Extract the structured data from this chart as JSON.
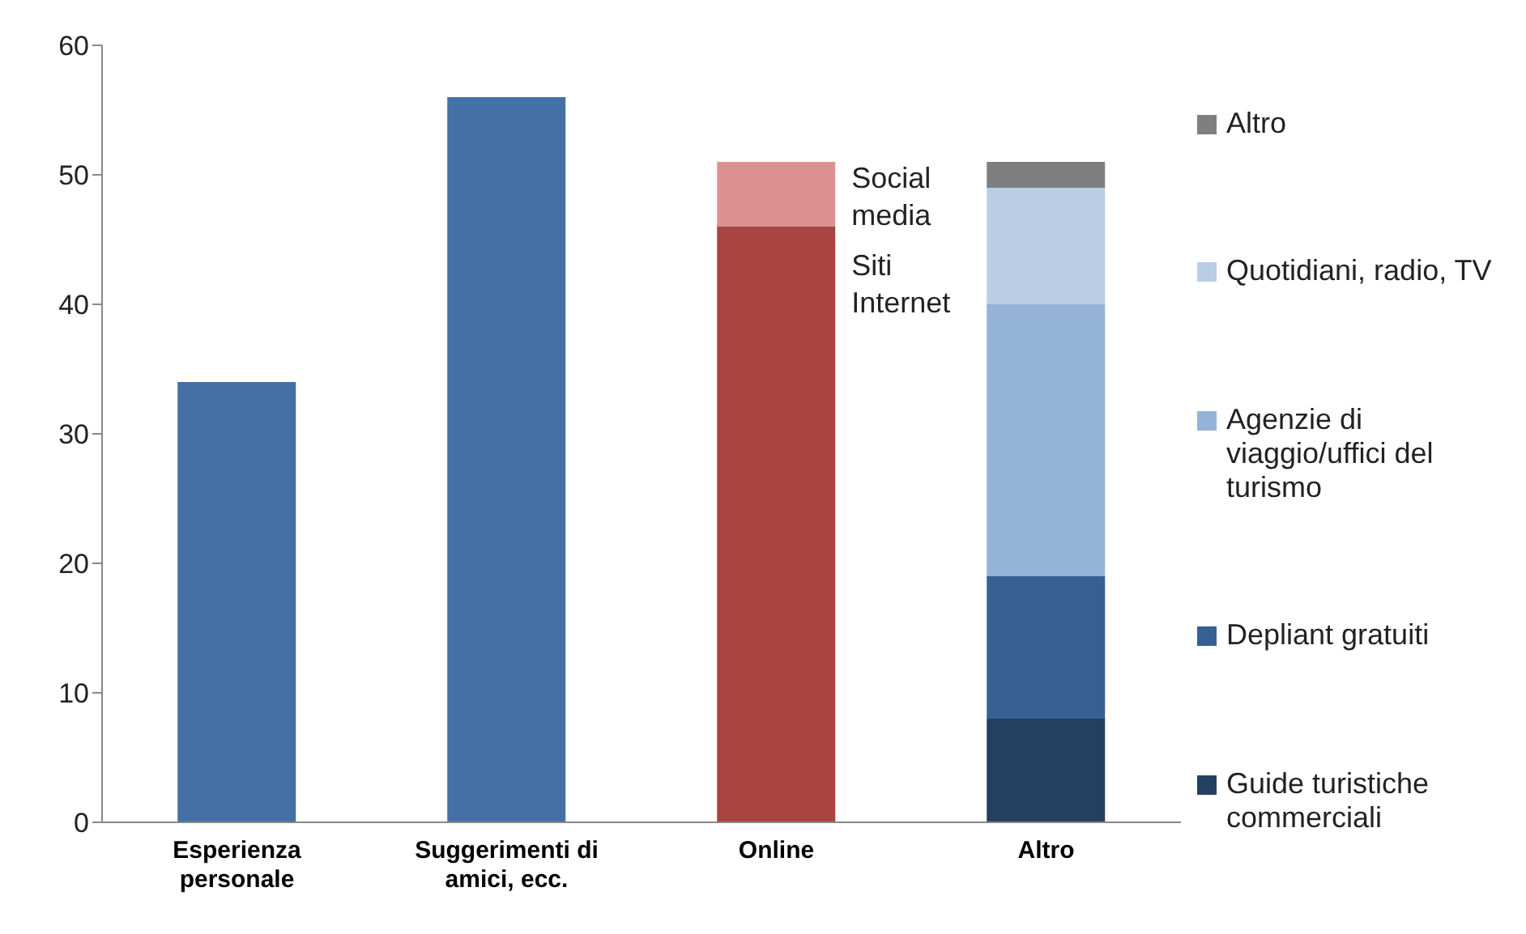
{
  "chart_data": {
    "type": "bar",
    "stacked": true,
    "categories": [
      "Esperienza personale",
      "Suggerimenti di amici, ecc.",
      "Online",
      "Altro"
    ],
    "series": [
      {
        "color": "#4470a6",
        "values": [
          34,
          56,
          null,
          null
        ]
      },
      {
        "name": "Siti Internet",
        "color": "#a84442",
        "values": [
          null,
          null,
          46,
          null
        ]
      },
      {
        "name": "Social media",
        "color": "#dc9190",
        "values": [
          null,
          null,
          5,
          null
        ]
      },
      {
        "name": "Guide turistiche commerciali",
        "color": "#243f60",
        "values": [
          null,
          null,
          null,
          8
        ]
      },
      {
        "name": "Depliant gratuiti",
        "color": "#366092",
        "values": [
          null,
          null,
          null,
          11
        ]
      },
      {
        "name": "Agenzie di viaggio/uffici del turismo",
        "color": "#95b3d7",
        "values": [
          null,
          null,
          null,
          21
        ]
      },
      {
        "name": "Quotidiani, radio, TV",
        "color": "#b9cde5",
        "values": [
          null,
          null,
          null,
          9
        ]
      },
      {
        "name": "Altro",
        "color": "#7f7f7f",
        "values": [
          null,
          null,
          null,
          2
        ]
      }
    ],
    "ylim": [
      0,
      60
    ],
    "yticks": [
      0,
      10,
      20,
      30,
      40,
      50,
      60
    ],
    "grid": false,
    "legend": "right"
  }
}
